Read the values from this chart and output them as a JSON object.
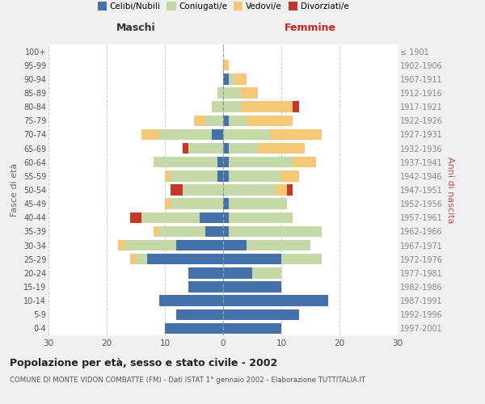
{
  "age_groups": [
    "0-4",
    "5-9",
    "10-14",
    "15-19",
    "20-24",
    "25-29",
    "30-34",
    "35-39",
    "40-44",
    "45-49",
    "50-54",
    "55-59",
    "60-64",
    "65-69",
    "70-74",
    "75-79",
    "80-84",
    "85-89",
    "90-94",
    "95-99",
    "100+"
  ],
  "birth_years": [
    "1997-2001",
    "1992-1996",
    "1987-1991",
    "1982-1986",
    "1977-1981",
    "1972-1976",
    "1967-1971",
    "1962-1966",
    "1957-1961",
    "1952-1956",
    "1947-1951",
    "1942-1946",
    "1937-1941",
    "1932-1936",
    "1927-1931",
    "1922-1926",
    "1917-1921",
    "1912-1916",
    "1907-1911",
    "1902-1906",
    "≤ 1901"
  ],
  "male": {
    "celibi": [
      10,
      8,
      11,
      6,
      6,
      13,
      8,
      3,
      4,
      0,
      0,
      1,
      1,
      0,
      2,
      0,
      0,
      0,
      0,
      0,
      0
    ],
    "coniugati": [
      0,
      0,
      0,
      0,
      0,
      2,
      9,
      8,
      10,
      9,
      7,
      8,
      11,
      6,
      9,
      3,
      2,
      1,
      0,
      0,
      0
    ],
    "vedovi": [
      0,
      0,
      0,
      0,
      0,
      1,
      1,
      1,
      0,
      1,
      0,
      1,
      0,
      0,
      3,
      2,
      0,
      0,
      0,
      0,
      0
    ],
    "divorziati": [
      0,
      0,
      0,
      0,
      0,
      0,
      0,
      0,
      2,
      0,
      2,
      0,
      0,
      1,
      0,
      0,
      0,
      0,
      0,
      0,
      0
    ]
  },
  "female": {
    "nubili": [
      10,
      13,
      18,
      10,
      5,
      10,
      4,
      1,
      1,
      1,
      0,
      1,
      1,
      1,
      0,
      1,
      0,
      0,
      1,
      0,
      0
    ],
    "coniugate": [
      0,
      0,
      0,
      0,
      5,
      7,
      11,
      16,
      11,
      10,
      9,
      9,
      11,
      5,
      8,
      3,
      3,
      3,
      1,
      0,
      0
    ],
    "vedove": [
      0,
      0,
      0,
      0,
      0,
      0,
      0,
      0,
      0,
      0,
      2,
      3,
      4,
      8,
      9,
      8,
      9,
      3,
      2,
      1,
      0
    ],
    "divorziate": [
      0,
      0,
      0,
      0,
      0,
      0,
      0,
      0,
      0,
      0,
      1,
      0,
      0,
      0,
      0,
      0,
      1,
      0,
      0,
      0,
      0
    ]
  },
  "colors": {
    "celibi_nubili": "#4472a8",
    "coniugati": "#c5d9a8",
    "vedovi": "#f5c878",
    "divorziati": "#c0392b"
  },
  "xlim": 30,
  "title": "Popolazione per età, sesso e stato civile - 2002",
  "subtitle": "COMUNE DI MONTE VIDON COMBATTE (FM) - Dati ISTAT 1° gennaio 2002 - Elaborazione TUTTITALIA.IT",
  "xlabel_left": "Maschi",
  "xlabel_right": "Femmine",
  "ylabel_left": "Fasce di età",
  "ylabel_right": "Anni di nascita",
  "legend_labels": [
    "Celibi/Nubili",
    "Coniugati/e",
    "Vedovi/e",
    "Divorziati/e"
  ],
  "bg_color": "#f0f0f0",
  "plot_bg_color": "#ffffff"
}
